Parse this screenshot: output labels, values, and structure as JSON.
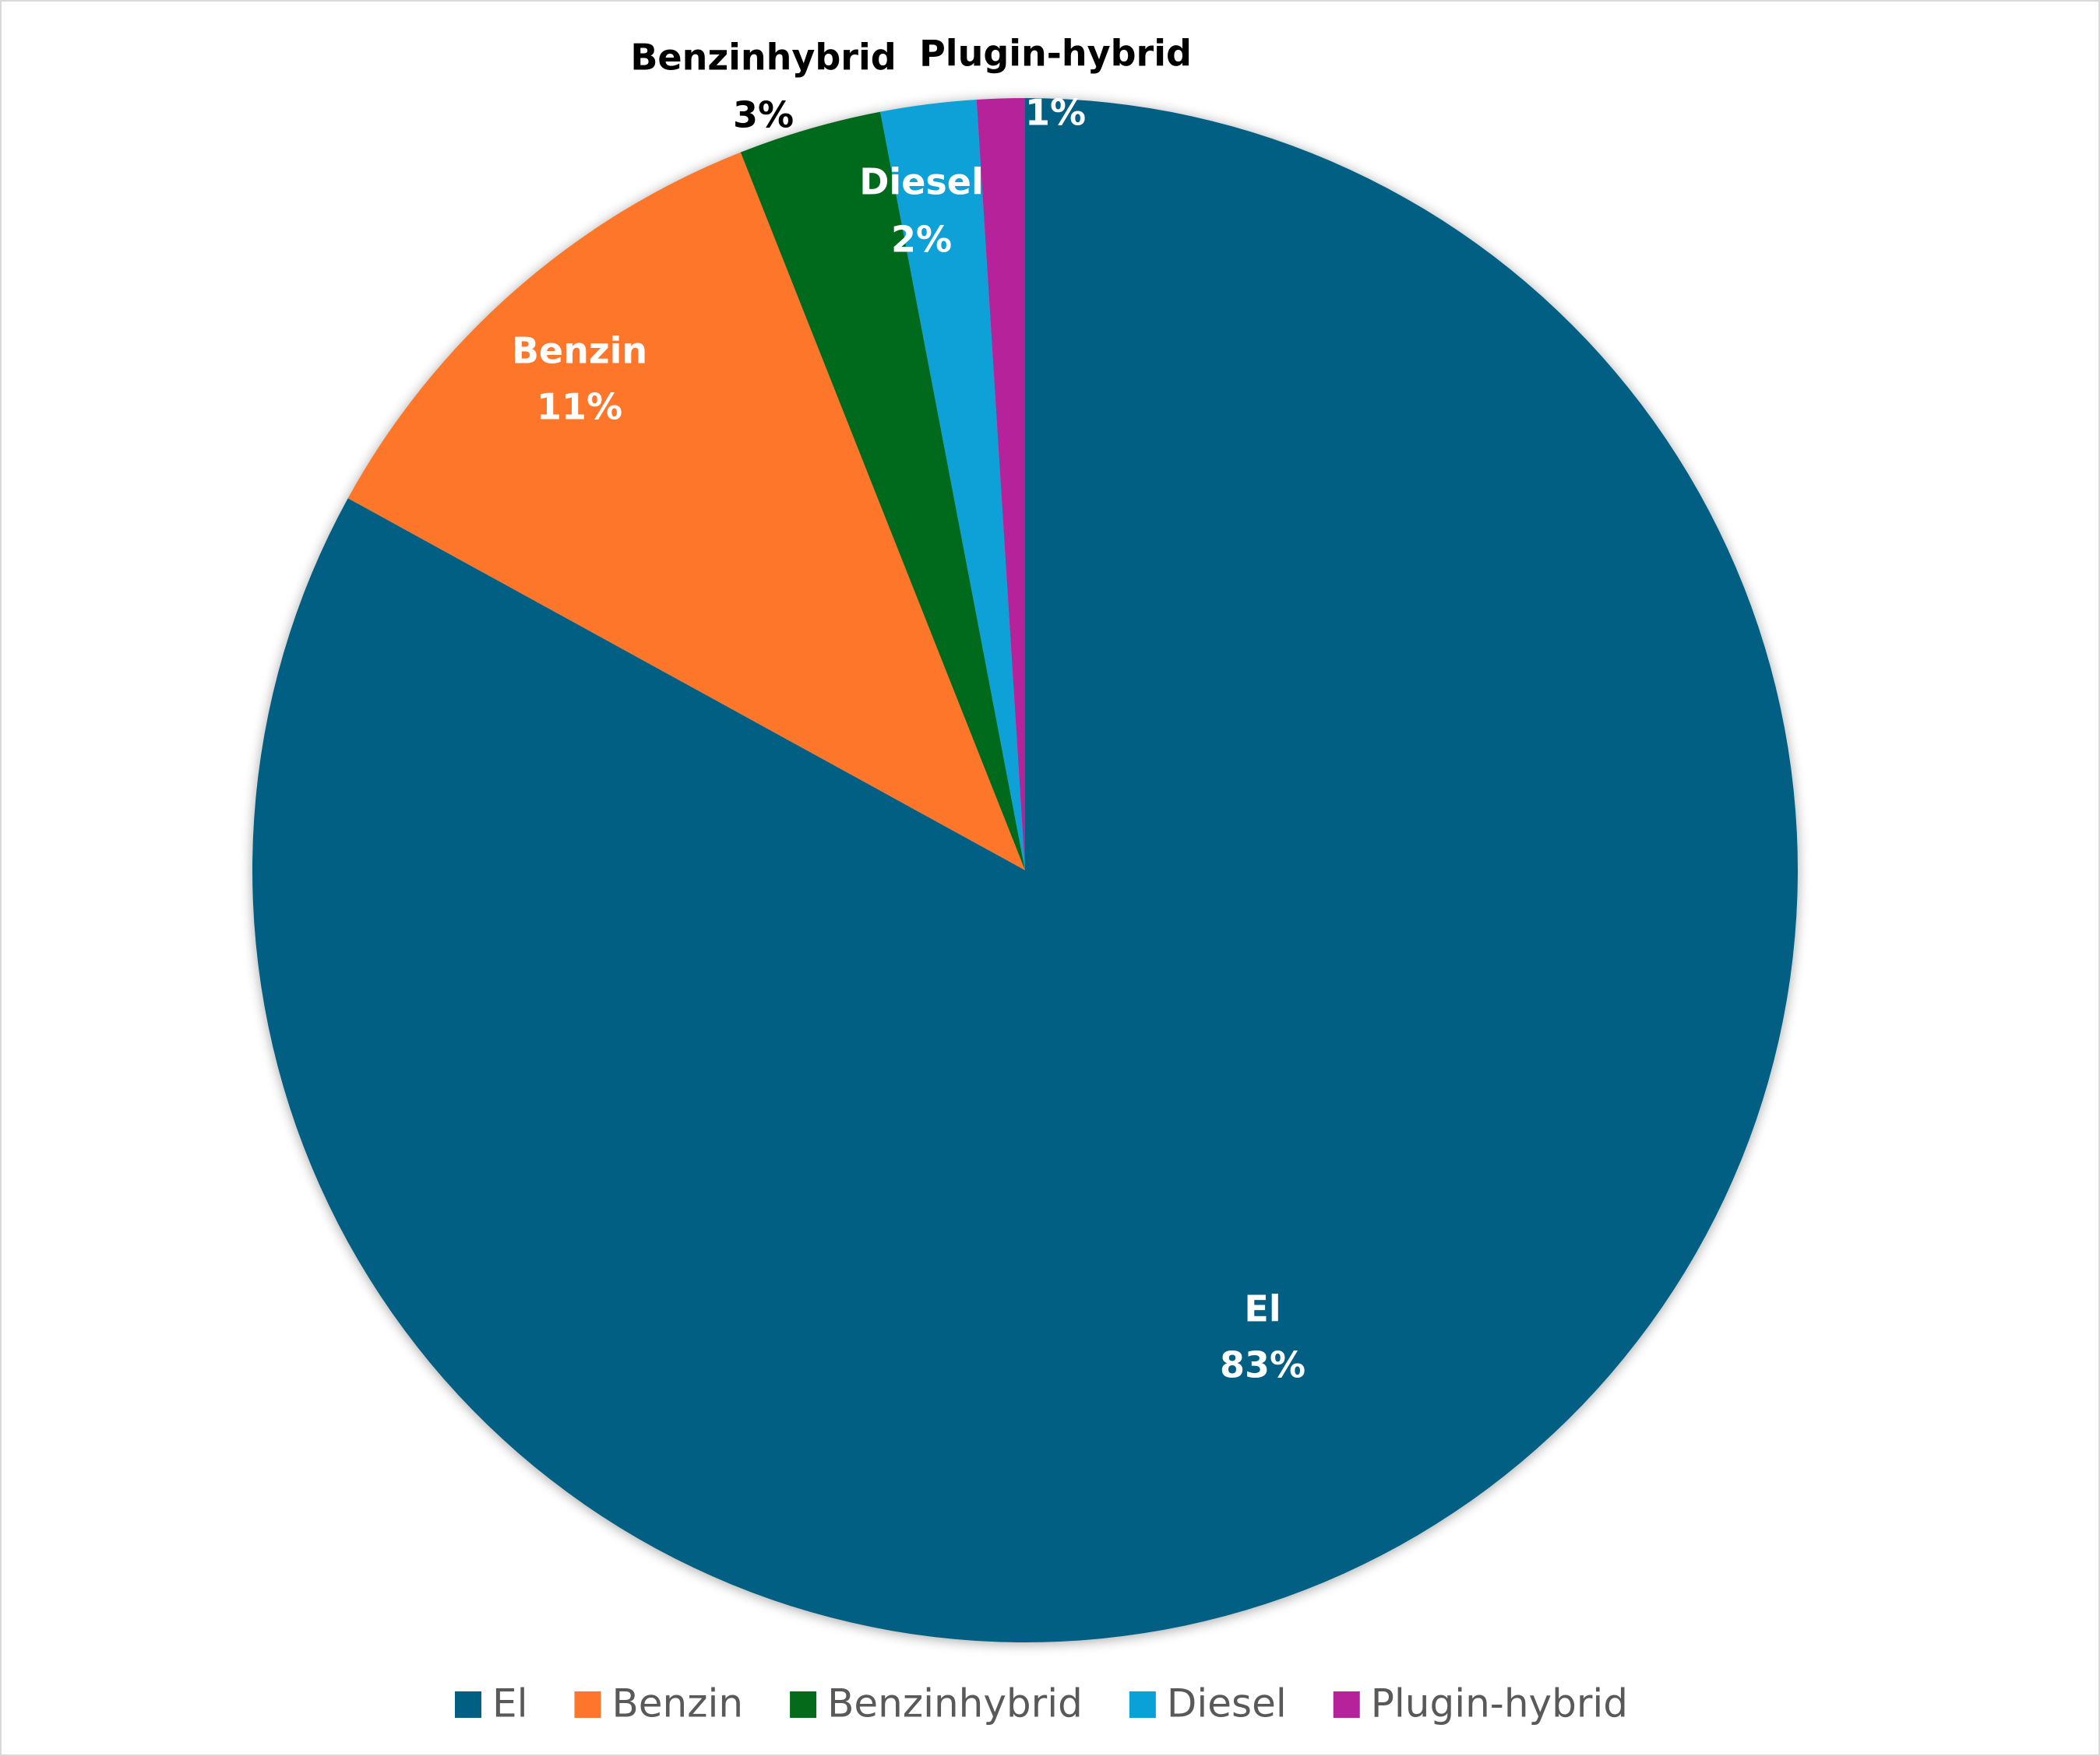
{
  "chart_data": {
    "type": "pie",
    "categories": [
      "El",
      "Benzin",
      "Benzinhybrid",
      "Diesel",
      "Plugin-hybrid"
    ],
    "values": [
      83,
      11,
      3,
      2,
      1
    ],
    "value_labels": [
      "83%",
      "11%",
      "3%",
      "2%",
      "1%"
    ],
    "colors": [
      "#005f83",
      "#fd762b",
      "#066a1b",
      "#0aa1d8",
      "#b5229a"
    ],
    "legend": "bottom"
  }
}
